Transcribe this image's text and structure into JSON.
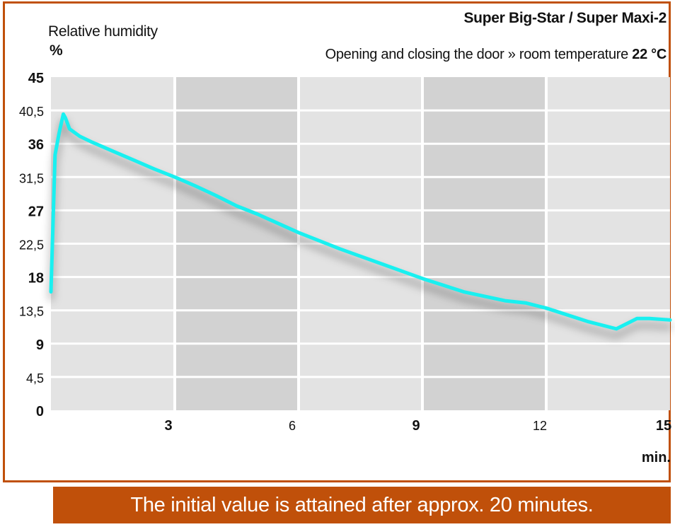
{
  "header": {
    "brand": "Super Big-Star / Super Maxi-2",
    "subtitle_prefix": "Opening and closing the door » room temperature ",
    "subtitle_value": "22 °C"
  },
  "banner": {
    "text": "The initial value is attained after approx. 20 minutes."
  },
  "colors": {
    "accent": "#c0500a",
    "line": "#19f0f0",
    "band_light": "#e3e3e3",
    "band_dark": "#d2d2d2"
  },
  "chart_data": {
    "type": "line",
    "ylabel": "Relative humidity",
    "yunit": "%",
    "xunit": "min.",
    "xlim": [
      0,
      15
    ],
    "ylim": [
      0,
      45
    ],
    "x_ticks": [
      {
        "value": 3,
        "label": "3",
        "bold": true
      },
      {
        "value": 6,
        "label": "6",
        "bold": false
      },
      {
        "value": 9,
        "label": "9",
        "bold": true
      },
      {
        "value": 12,
        "label": "12",
        "bold": false
      },
      {
        "value": 15,
        "label": "15",
        "bold": true
      }
    ],
    "y_ticks": [
      {
        "value": 45,
        "label": "45",
        "bold": true
      },
      {
        "value": 40.5,
        "label": "40,5",
        "bold": false
      },
      {
        "value": 36,
        "label": "36",
        "bold": true
      },
      {
        "value": 31.5,
        "label": "31,5",
        "bold": false
      },
      {
        "value": 27,
        "label": "27",
        "bold": true
      },
      {
        "value": 22.5,
        "label": "22,5",
        "bold": false
      },
      {
        "value": 18,
        "label": "18",
        "bold": true
      },
      {
        "value": 13.5,
        "label": "13,5",
        "bold": false
      },
      {
        "value": 9,
        "label": "9",
        "bold": true
      },
      {
        "value": 4.5,
        "label": "4,5",
        "bold": false
      },
      {
        "value": 0,
        "label": "0",
        "bold": true
      }
    ],
    "grid": true,
    "series": [
      {
        "x": [
          0.0,
          0.1,
          0.2,
          0.3,
          0.35,
          0.45,
          0.7,
          1.0,
          1.5,
          2.0,
          2.5,
          3.0,
          3.5,
          4.0,
          4.5,
          5.0,
          6.0,
          7.0,
          8.0,
          9.0,
          10.0,
          11.0,
          11.5,
          12.0,
          13.0,
          13.7,
          14.2,
          14.5,
          15.0
        ],
        "y": [
          16.0,
          34.5,
          37.5,
          40.0,
          39.5,
          38.0,
          37.0,
          36.2,
          35.0,
          33.8,
          32.6,
          31.5,
          30.3,
          29.0,
          27.6,
          26.5,
          24.0,
          21.8,
          19.8,
          17.8,
          16.0,
          14.8,
          14.5,
          13.8,
          12.0,
          11.0,
          12.4,
          12.4,
          12.2
        ]
      }
    ]
  }
}
